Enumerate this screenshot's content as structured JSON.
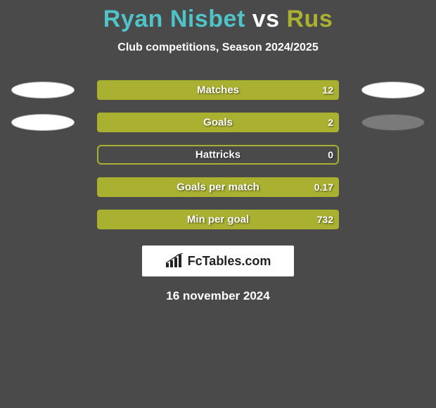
{
  "title": {
    "player1": "Ryan Nisbet",
    "vs": "vs",
    "player2": "Rus"
  },
  "subtitle": "Club competitions, Season 2024/2025",
  "colors": {
    "background": "#4a4a4a",
    "player1": "#4fc3c7",
    "player2": "#aab030",
    "bar_fill": "#aab030",
    "bar_outline": "#aab030",
    "ellipse_white": "#ffffff",
    "ellipse_grey": "#7a7a7a",
    "label_text": "#ffffff"
  },
  "bar_style": {
    "holder_width": 344,
    "holder_height": 28,
    "border_radius": 6,
    "border_width": 2,
    "label_fontsize": 15,
    "value_fontsize": 14
  },
  "stats": [
    {
      "label": "Matches",
      "value_right": "12",
      "fill_pct": 100,
      "ellipse_left": "white",
      "ellipse_right": "white"
    },
    {
      "label": "Goals",
      "value_right": "2",
      "fill_pct": 100,
      "ellipse_left": "white",
      "ellipse_right": "grey"
    },
    {
      "label": "Hattricks",
      "value_right": "0",
      "fill_pct": 0,
      "ellipse_left": null,
      "ellipse_right": null
    },
    {
      "label": "Goals per match",
      "value_right": "0.17",
      "fill_pct": 100,
      "ellipse_left": null,
      "ellipse_right": null
    },
    {
      "label": "Min per goal",
      "value_right": "732",
      "fill_pct": 100,
      "ellipse_left": null,
      "ellipse_right": null
    }
  ],
  "branding": {
    "text": "FcTables.com"
  },
  "date": "16 november 2024"
}
